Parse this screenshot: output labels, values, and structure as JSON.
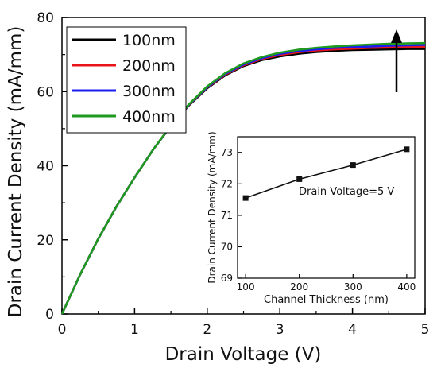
{
  "chart_data": [
    {
      "type": "line",
      "xlabel": "Drain Voltage (V)",
      "ylabel": "Drain Current Density (mA/mm)",
      "xlim": [
        0,
        5
      ],
      "ylim": [
        0,
        80
      ],
      "xticks": [
        "0",
        "1",
        "2",
        "3",
        "4",
        "5"
      ],
      "yticks": [
        "0",
        "20",
        "40",
        "60",
        "80"
      ],
      "grid": false,
      "legend_position": "top-left",
      "annotation": "upward arrow near x=4.6 indicating increasing current",
      "x": [
        0,
        0.25,
        0.5,
        0.75,
        1.0,
        1.25,
        1.5,
        1.75,
        2.0,
        2.25,
        2.5,
        2.75,
        3.0,
        3.25,
        3.5,
        3.75,
        4.0,
        4.25,
        4.5,
        4.75,
        5.0
      ],
      "series": [
        {
          "name": "100nm",
          "color": "#000000",
          "values": [
            0,
            10.6,
            20.3,
            29.0,
            36.8,
            44.2,
            50.7,
            56.3,
            60.9,
            64.4,
            66.9,
            68.5,
            69.5,
            70.2,
            70.7,
            71.0,
            71.2,
            71.3,
            71.4,
            71.5,
            71.5
          ]
        },
        {
          "name": "200nm",
          "color": "#e8141a",
          "values": [
            0,
            10.6,
            20.3,
            29.0,
            36.8,
            44.2,
            50.8,
            56.4,
            61.1,
            64.6,
            67.1,
            68.8,
            69.9,
            70.6,
            71.1,
            71.4,
            71.6,
            71.8,
            71.9,
            72.0,
            72.1
          ]
        },
        {
          "name": "300nm",
          "color": "#1c1cf0",
          "values": [
            0,
            10.6,
            20.3,
            29.0,
            36.8,
            44.2,
            50.8,
            56.5,
            61.2,
            64.8,
            67.3,
            69.0,
            70.2,
            70.9,
            71.4,
            71.8,
            72.0,
            72.2,
            72.4,
            72.5,
            72.6
          ]
        },
        {
          "name": "400nm",
          "color": "#1f9a1f",
          "values": [
            0,
            10.6,
            20.3,
            29.0,
            36.8,
            44.2,
            50.9,
            56.6,
            61.4,
            65.0,
            67.6,
            69.3,
            70.5,
            71.3,
            71.8,
            72.2,
            72.5,
            72.7,
            72.9,
            73.0,
            73.1
          ]
        }
      ]
    },
    {
      "type": "line",
      "xlabel": "Channel Thickness (nm)",
      "ylabel": "Drain Current Density (mA/mm)",
      "annotation": "Drain Voltage=5 V",
      "xlim": [
        85,
        415
      ],
      "ylim": [
        69,
        73.5
      ],
      "xticks": [
        "100",
        "200",
        "300",
        "400"
      ],
      "yticks": [
        "69",
        "70",
        "71",
        "72",
        "73"
      ],
      "x": [
        100,
        200,
        300,
        400
      ],
      "values": [
        71.55,
        72.15,
        72.6,
        73.1
      ],
      "color": "#111111"
    }
  ]
}
